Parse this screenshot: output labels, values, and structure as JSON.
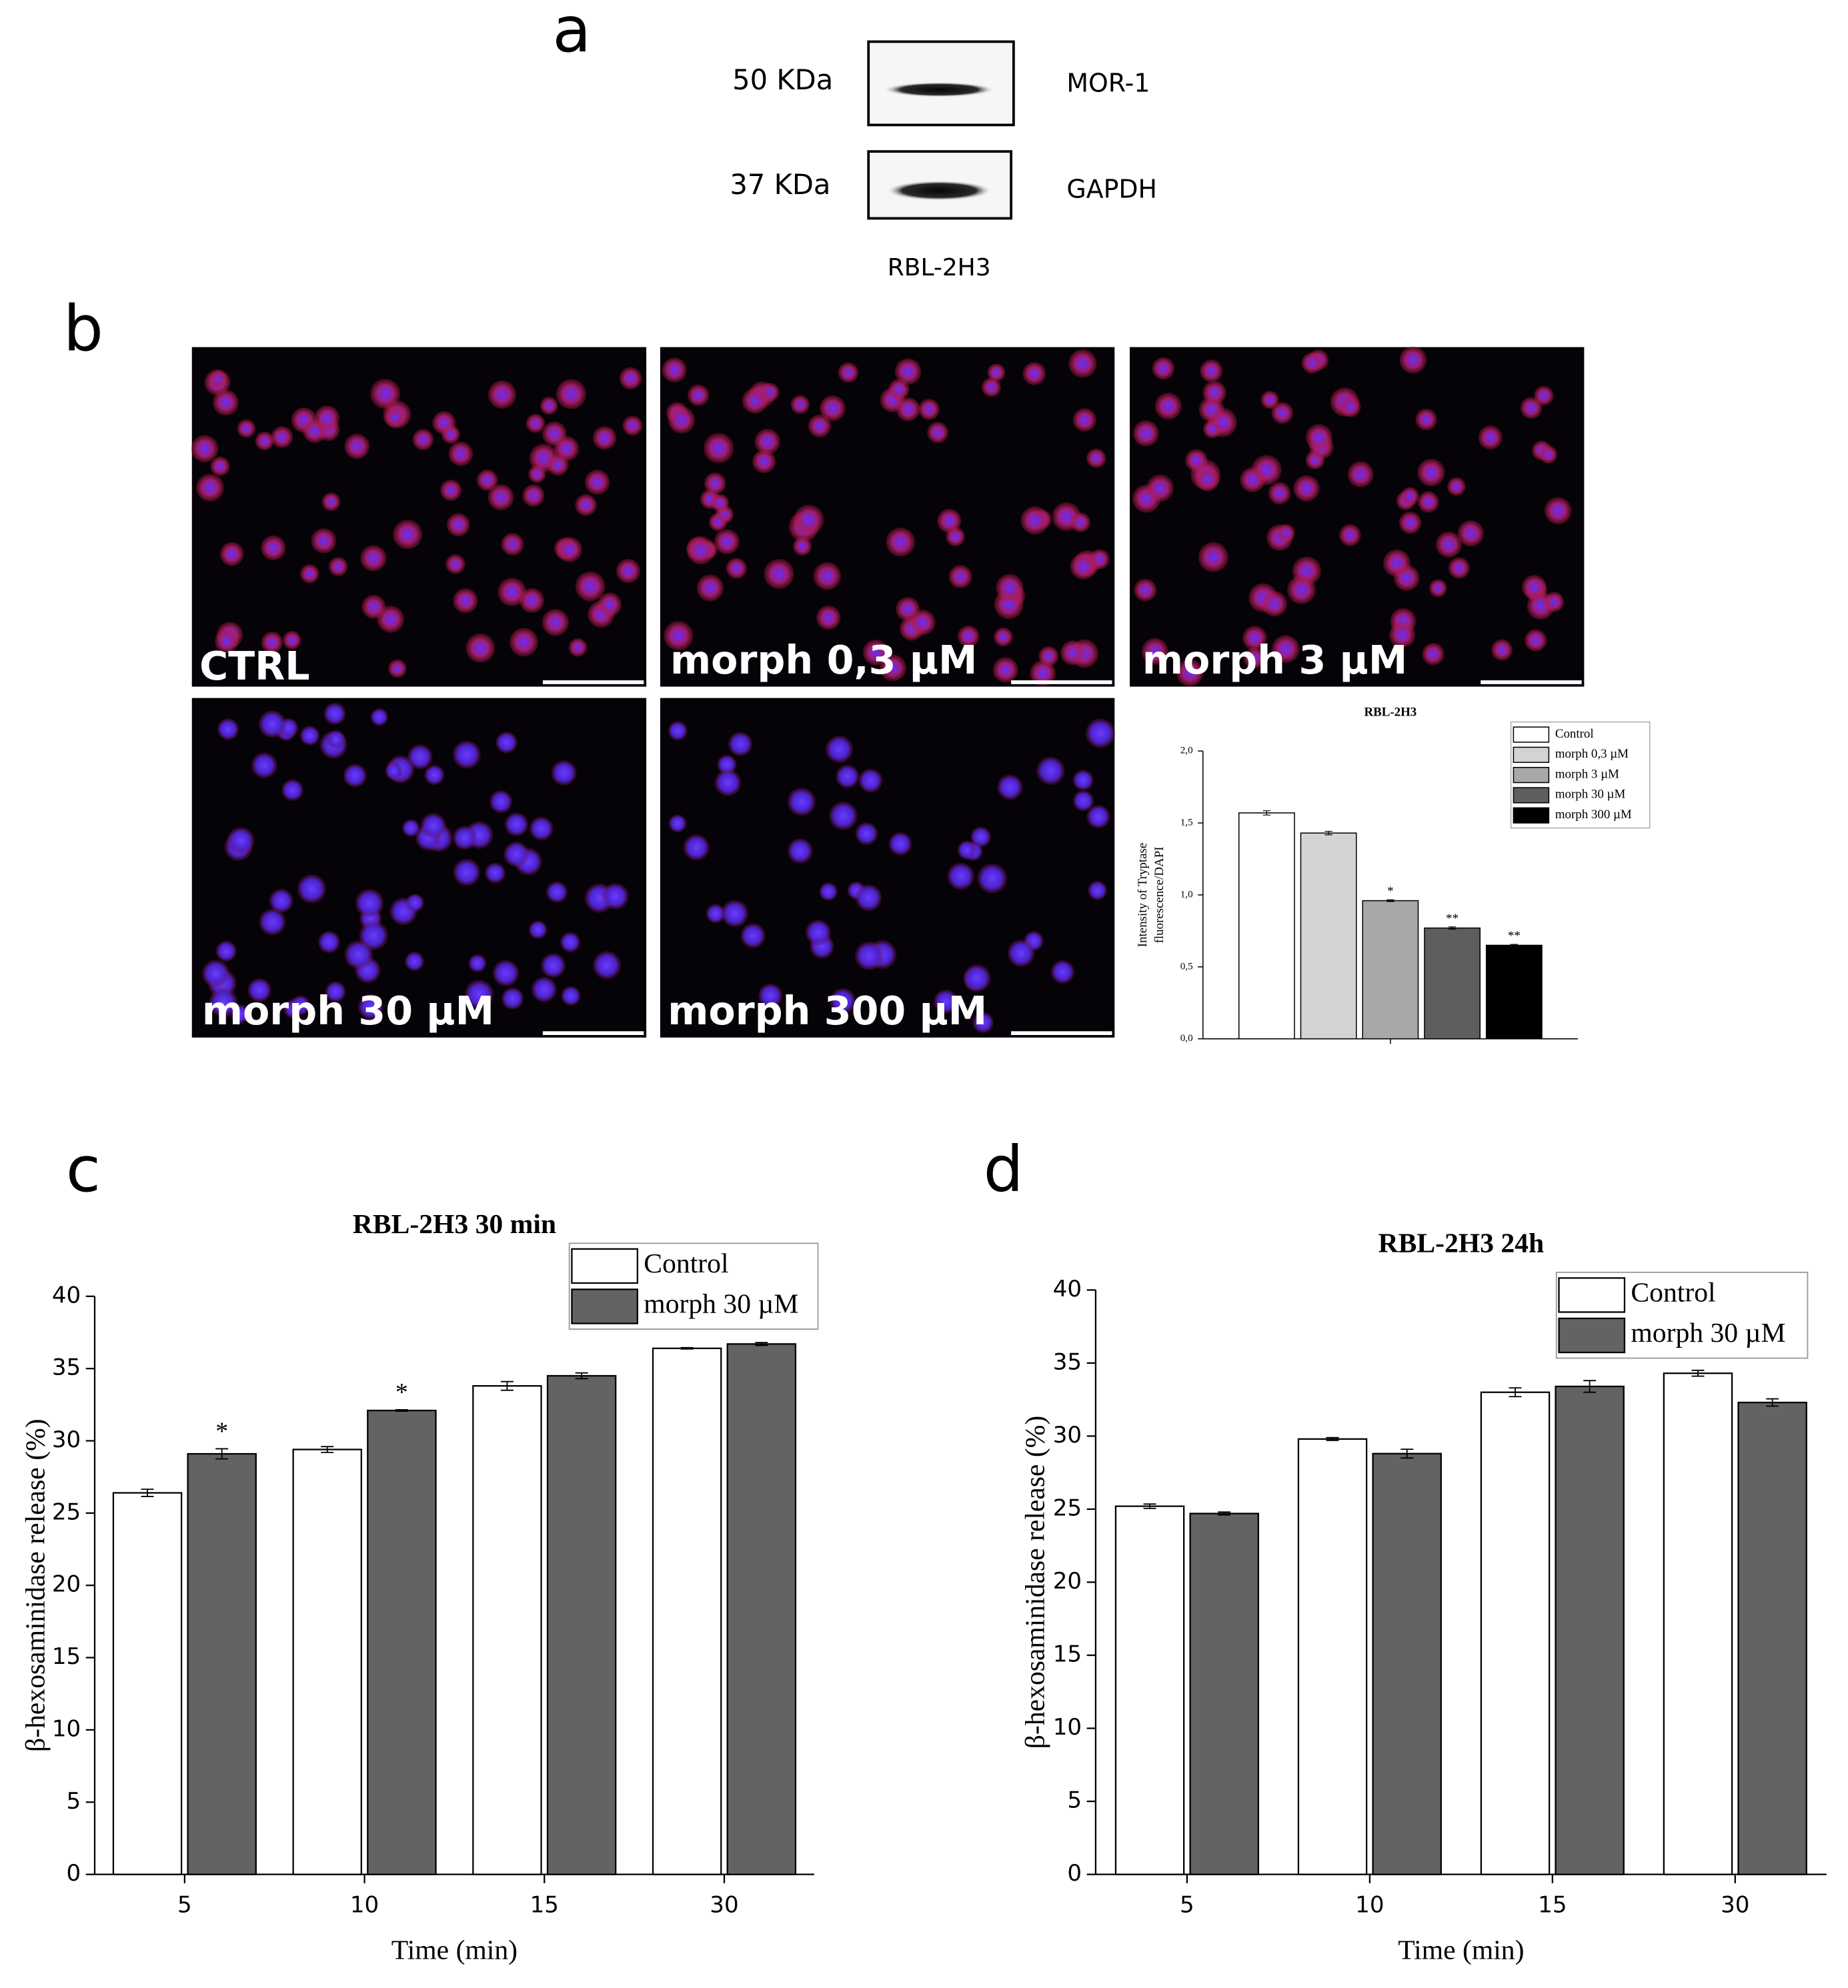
{
  "panel_labels": [
    "a",
    "b",
    "c",
    "d"
  ],
  "blot": {
    "rows": [
      {
        "size": "50 KDa",
        "protein": "MOR-1"
      },
      {
        "size": "37 KDa",
        "protein": "GAPDH"
      }
    ],
    "cell_line": "RBL-2H3"
  },
  "micrographs": {
    "labels": [
      "CTRL",
      "morph 0,3 µM",
      "morph 3 µM",
      "morph 30 µM",
      "morph 300 µM"
    ]
  },
  "chart_data": [
    {
      "type": "bar",
      "title": "RBL-2H3",
      "y_label": [
        "Intensity of Tryptase",
        "fluorescence/DAPI"
      ],
      "categories": [
        null
      ],
      "series": [
        {
          "name": "Control",
          "color": "#ffffff",
          "values": [
            1.57
          ],
          "errors": [
            0.015
          ],
          "significance": [
            null
          ]
        },
        {
          "name": "morph 0,3 µM",
          "color": "#d3d3d3",
          "values": [
            1.43
          ],
          "errors": [
            0.012
          ],
          "significance": [
            null
          ]
        },
        {
          "name": "morph 3 µM",
          "color": "#a8a8a8",
          "values": [
            0.96
          ],
          "errors": [
            0.006
          ],
          "significance": [
            "*"
          ]
        },
        {
          "name": "morph 30 µM",
          "color": "#5e5e5e",
          "values": [
            0.77
          ],
          "errors": [
            0.008
          ],
          "significance": [
            "**"
          ]
        },
        {
          "name": "morph 300 µM",
          "color": "#000000",
          "values": [
            0.65
          ],
          "errors": [
            0.006
          ],
          "significance": [
            "**"
          ]
        }
      ],
      "ylim": [
        0,
        2
      ],
      "yticks": [
        {
          "value": 0,
          "label": "0,0"
        },
        {
          "value": 0.5,
          "label": "0,5"
        },
        {
          "value": 1,
          "label": "1,0"
        },
        {
          "value": 1.5,
          "label": "1,5"
        },
        {
          "value": 2,
          "label": "2,0"
        }
      ],
      "legend": "upper right",
      "grid": false
    },
    {
      "type": "bar",
      "title": "RBL-2H3 30 min",
      "x_label": "Time (min)",
      "y_label": [
        "β-hexosaminidase release (%)"
      ],
      "categories": [
        "5",
        "10",
        "15",
        "30"
      ],
      "series": [
        {
          "name": "Control",
          "color": "#ffffff",
          "values": [
            26.4,
            29.4,
            33.8,
            36.4
          ],
          "errors": [
            0.25,
            0.2,
            0.3,
            0.05
          ],
          "significance": [
            null,
            null,
            null,
            null
          ]
        },
        {
          "name": "morph 30 µM",
          "color": "#636363",
          "values": [
            29.1,
            32.1,
            34.5,
            36.7
          ],
          "errors": [
            0.35,
            0.05,
            0.2,
            0.1
          ],
          "significance": [
            "*",
            "*",
            null,
            null
          ]
        }
      ],
      "ylim": [
        0,
        40
      ],
      "yticks": [
        0,
        5,
        10,
        15,
        20,
        25,
        30,
        35,
        40
      ],
      "legend": "upper right",
      "grid": false
    },
    {
      "type": "bar",
      "title": "RBL-2H3 24h",
      "x_label": "Time (min)",
      "y_label": [
        "β-hexosaminidase release (%)"
      ],
      "categories": [
        "5",
        "10",
        "15",
        "30"
      ],
      "series": [
        {
          "name": "Control",
          "color": "#ffffff",
          "values": [
            25.2,
            29.8,
            33.0,
            34.3
          ],
          "errors": [
            0.15,
            0.1,
            0.3,
            0.2
          ],
          "significance": [
            null,
            null,
            null,
            null
          ]
        },
        {
          "name": "morph 30 µM",
          "color": "#636363",
          "values": [
            24.7,
            28.8,
            33.4,
            32.3
          ],
          "errors": [
            0.1,
            0.3,
            0.4,
            0.25
          ],
          "significance": [
            null,
            null,
            null,
            null
          ]
        }
      ],
      "ylim": [
        0,
        40
      ],
      "yticks": [
        0,
        5,
        10,
        15,
        20,
        25,
        30,
        35,
        40
      ],
      "legend": "upper right",
      "grid": false
    }
  ]
}
